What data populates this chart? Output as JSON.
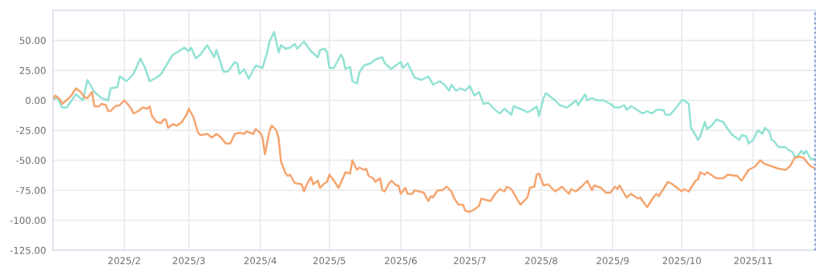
{
  "chart_data": {
    "type": "line",
    "xlim": [
      "2025-01-01",
      "2025-11-28"
    ],
    "xticks": [
      {
        "value": "2025-02-01",
        "label": "2025/2"
      },
      {
        "value": "2025-03-01",
        "label": "2025/3"
      },
      {
        "value": "2025-04-01",
        "label": "2025/4"
      },
      {
        "value": "2025-05-01",
        "label": "2025/5"
      },
      {
        "value": "2025-06-01",
        "label": "2025/6"
      },
      {
        "value": "2025-07-01",
        "label": "2025/7"
      },
      {
        "value": "2025-08-01",
        "label": "2025/8"
      },
      {
        "value": "2025-09-01",
        "label": "2025/9"
      },
      {
        "value": "2025-10-01",
        "label": "2025/10"
      },
      {
        "value": "2025-11-01",
        "label": "2025/11"
      }
    ],
    "ylim": [
      -125,
      75
    ],
    "yticks": [
      {
        "value": -125,
        "label": "-125.00"
      },
      {
        "value": -100,
        "label": "-100.00"
      },
      {
        "value": -75,
        "label": "-75.00"
      },
      {
        "value": -50,
        "label": "-50.00"
      },
      {
        "value": -25,
        "label": "-25.00"
      },
      {
        "value": 0,
        "label": "0.00"
      },
      {
        "value": 25,
        "label": "25.00"
      },
      {
        "value": 50,
        "label": "50.00"
      }
    ],
    "grid": true,
    "marker": "none",
    "line_style": "solid",
    "ref_lines": [
      {
        "axis": "x",
        "value": "2025-11-28",
        "color": "#2f55c8",
        "line_style": "dotted"
      }
    ],
    "series": [
      {
        "color": "#92e2d4",
        "x": [
          "2025-01-01",
          "2025-01-03",
          "2025-01-05",
          "2025-01-07",
          "2025-01-11",
          "2025-01-14",
          "2025-01-16",
          "2025-01-19",
          "2025-01-22",
          "2025-01-25",
          "2025-01-26",
          "2025-01-29",
          "2025-01-30",
          "2025-02-02",
          "2025-02-05",
          "2025-02-08",
          "2025-02-10",
          "2025-02-12",
          "2025-02-15",
          "2025-02-17",
          "2025-02-22",
          "2025-02-24",
          "2025-02-27",
          "2025-03-01",
          "2025-03-02",
          "2025-03-04",
          "2025-03-06",
          "2025-03-09",
          "2025-03-12",
          "2025-03-13",
          "2025-03-16",
          "2025-03-18",
          "2025-03-21",
          "2025-03-22",
          "2025-03-23",
          "2025-03-25",
          "2025-03-27",
          "2025-03-30",
          "2025-04-02",
          "2025-04-04",
          "2025-04-05",
          "2025-04-07",
          "2025-04-09",
          "2025-04-10",
          "2025-04-12",
          "2025-04-14",
          "2025-04-16",
          "2025-04-17",
          "2025-04-20",
          "2025-04-23",
          "2025-04-26",
          "2025-04-27",
          "2025-04-29",
          "2025-04-30",
          "2025-05-01",
          "2025-05-03",
          "2025-05-06",
          "2025-05-07",
          "2025-05-08",
          "2025-05-10",
          "2025-05-11",
          "2025-05-13",
          "2025-05-14",
          "2025-05-16",
          "2025-05-19",
          "2025-05-21",
          "2025-05-24",
          "2025-05-25",
          "2025-05-28",
          "2025-05-29",
          "2025-06-01",
          "2025-06-02",
          "2025-06-04",
          "2025-06-07",
          "2025-06-10",
          "2025-06-13",
          "2025-06-15",
          "2025-06-18",
          "2025-06-20",
          "2025-06-22",
          "2025-06-23",
          "2025-06-25",
          "2025-06-27",
          "2025-06-29",
          "2025-07-01",
          "2025-07-03",
          "2025-07-05",
          "2025-07-07",
          "2025-07-09",
          "2025-07-12",
          "2025-07-14",
          "2025-07-16",
          "2025-07-19",
          "2025-07-20",
          "2025-07-24",
          "2025-07-26",
          "2025-07-28",
          "2025-07-30",
          "2025-07-31",
          "2025-08-02",
          "2025-08-03",
          "2025-08-05",
          "2025-08-07",
          "2025-08-09",
          "2025-08-12",
          "2025-08-13",
          "2025-08-16",
          "2025-08-17",
          "2025-08-20",
          "2025-08-21",
          "2025-08-23",
          "2025-08-25",
          "2025-08-28",
          "2025-08-31",
          "2025-09-02",
          "2025-09-04",
          "2025-09-06",
          "2025-09-07",
          "2025-09-09",
          "2025-09-10",
          "2025-09-14",
          "2025-09-16",
          "2025-09-18",
          "2025-09-20",
          "2025-09-23",
          "2025-09-24",
          "2025-09-26",
          "2025-09-29",
          "2025-10-01",
          "2025-10-02",
          "2025-10-04",
          "2025-10-05",
          "2025-10-07",
          "2025-10-08",
          "2025-10-09",
          "2025-10-11",
          "2025-10-12",
          "2025-10-14",
          "2025-10-16",
          "2025-10-19",
          "2025-10-21",
          "2025-10-23",
          "2025-10-26",
          "2025-10-27",
          "2025-10-29",
          "2025-10-30",
          "2025-11-01",
          "2025-11-03",
          "2025-11-05",
          "2025-11-06",
          "2025-11-08",
          "2025-11-09",
          "2025-11-10",
          "2025-11-12",
          "2025-11-15",
          "2025-11-16",
          "2025-11-18",
          "2025-11-19",
          "2025-11-20",
          "2025-11-22",
          "2025-11-23",
          "2025-11-24",
          "2025-11-26",
          "2025-11-28"
        ],
        "values": [
          1,
          2,
          -6,
          -6,
          5,
          0,
          17,
          7,
          2,
          0,
          10,
          11,
          20,
          16,
          22,
          35,
          27,
          16,
          19,
          22,
          38,
          40,
          44,
          41,
          44,
          35,
          38,
          46,
          36,
          42,
          24,
          24,
          32,
          31,
          22,
          26,
          18,
          29,
          27,
          40,
          49,
          57,
          40,
          46,
          43,
          44,
          47,
          43,
          49,
          41,
          36,
          42,
          43,
          40,
          27,
          27,
          38,
          35,
          26,
          28,
          16,
          14,
          23,
          29,
          31,
          34,
          36,
          31,
          26,
          28,
          32,
          27,
          31,
          19,
          17,
          20,
          13,
          16,
          13,
          8,
          13,
          8,
          10,
          8,
          12,
          4,
          7,
          -3,
          -2,
          -8,
          -11,
          -7,
          -12,
          -5,
          -8,
          -10,
          -8,
          -5,
          -13,
          2,
          6,
          3,
          0,
          -4,
          -6,
          -5,
          0,
          -4,
          5,
          0,
          2,
          0,
          0,
          -3,
          -6,
          -6,
          -4,
          -8,
          -5,
          -6,
          -11,
          -9,
          -11,
          -8,
          -8,
          -12,
          -12,
          -5,
          0,
          0,
          -3,
          -23,
          -29,
          -33,
          -30,
          -18,
          -24,
          -21,
          -16,
          -18,
          -24,
          -29,
          -33,
          -29,
          -30,
          -36,
          -33,
          -25,
          -28,
          -23,
          -26,
          -33,
          -34,
          -39,
          -39,
          -41,
          -43,
          -47,
          -47,
          -42,
          -45,
          -42,
          -49,
          -49
        ]
      },
      {
        "color": "#f5a56f",
        "x": [
          "2025-01-01",
          "2025-01-02",
          "2025-01-04",
          "2025-01-05",
          "2025-01-08",
          "2025-01-09",
          "2025-01-11",
          "2025-01-13",
          "2025-01-15",
          "2025-01-16",
          "2025-01-18",
          "2025-01-19",
          "2025-01-21",
          "2025-01-22",
          "2025-01-24",
          "2025-01-25",
          "2025-01-26",
          "2025-01-28",
          "2025-01-30",
          "2025-02-01",
          "2025-02-02",
          "2025-02-04",
          "2025-02-05",
          "2025-02-07",
          "2025-02-09",
          "2025-02-11",
          "2025-02-12",
          "2025-02-13",
          "2025-02-15",
          "2025-02-17",
          "2025-02-18",
          "2025-02-19",
          "2025-02-20",
          "2025-02-22",
          "2025-02-24",
          "2025-02-26",
          "2025-02-28",
          "2025-03-01",
          "2025-03-03",
          "2025-03-05",
          "2025-03-06",
          "2025-03-09",
          "2025-03-11",
          "2025-03-13",
          "2025-03-15",
          "2025-03-17",
          "2025-03-19",
          "2025-03-21",
          "2025-03-23",
          "2025-03-25",
          "2025-03-26",
          "2025-03-29",
          "2025-03-30",
          "2025-04-01",
          "2025-04-02",
          "2025-04-03",
          "2025-04-05",
          "2025-04-06",
          "2025-04-08",
          "2025-04-09",
          "2025-04-10",
          "2025-04-12",
          "2025-04-13",
          "2025-04-14",
          "2025-04-16",
          "2025-04-19",
          "2025-04-20",
          "2025-04-21",
          "2025-04-23",
          "2025-04-24",
          "2025-04-26",
          "2025-04-27",
          "2025-04-29",
          "2025-04-30",
          "2025-05-01",
          "2025-05-03",
          "2025-05-05",
          "2025-05-08",
          "2025-05-10",
          "2025-05-11",
          "2025-05-13",
          "2025-05-14",
          "2025-05-16",
          "2025-05-17",
          "2025-05-18",
          "2025-05-20",
          "2025-05-21",
          "2025-05-23",
          "2025-05-24",
          "2025-05-25",
          "2025-05-27",
          "2025-05-28",
          "2025-05-30",
          "2025-05-31",
          "2025-06-01",
          "2025-06-03",
          "2025-06-04",
          "2025-06-06",
          "2025-06-07",
          "2025-06-09",
          "2025-06-11",
          "2025-06-13",
          "2025-06-14",
          "2025-06-15",
          "2025-06-17",
          "2025-06-19",
          "2025-06-21",
          "2025-06-23",
          "2025-06-24",
          "2025-06-26",
          "2025-06-28",
          "2025-06-29",
          "2025-07-01",
          "2025-07-03",
          "2025-07-05",
          "2025-07-06",
          "2025-07-08",
          "2025-07-10",
          "2025-07-12",
          "2025-07-14",
          "2025-07-16",
          "2025-07-17",
          "2025-07-19",
          "2025-07-22",
          "2025-07-23",
          "2025-07-26",
          "2025-07-27",
          "2025-07-29",
          "2025-07-30",
          "2025-07-31",
          "2025-08-02",
          "2025-08-04",
          "2025-08-07",
          "2025-08-10",
          "2025-08-13",
          "2025-08-14",
          "2025-08-16",
          "2025-08-19",
          "2025-08-21",
          "2025-08-23",
          "2025-08-24",
          "2025-08-27",
          "2025-08-29",
          "2025-08-31",
          "2025-09-02",
          "2025-09-03",
          "2025-09-04",
          "2025-09-07",
          "2025-09-09",
          "2025-09-12",
          "2025-09-13",
          "2025-09-14",
          "2025-09-16",
          "2025-09-17",
          "2025-09-19",
          "2025-09-20",
          "2025-09-21",
          "2025-09-25",
          "2025-09-27",
          "2025-10-01",
          "2025-10-02",
          "2025-10-04",
          "2025-10-05",
          "2025-10-07",
          "2025-10-08",
          "2025-10-09",
          "2025-10-11",
          "2025-10-12",
          "2025-10-16",
          "2025-10-17",
          "2025-10-19",
          "2025-10-21",
          "2025-10-25",
          "2025-10-27",
          "2025-10-30",
          "2025-11-02",
          "2025-11-04",
          "2025-11-06",
          "2025-11-09",
          "2025-11-12",
          "2025-11-15",
          "2025-11-17",
          "2025-11-19",
          "2025-11-21",
          "2025-11-23",
          "2025-11-24",
          "2025-11-26",
          "2025-11-28"
        ],
        "values": [
          1,
          4,
          1,
          -3,
          2,
          4,
          10,
          7,
          2,
          2,
          7,
          -5,
          -5,
          -3,
          -4,
          -9,
          -9,
          -5,
          -4,
          0,
          -2,
          -7,
          -11,
          -9,
          -6,
          -7,
          -5,
          -13,
          -18,
          -19,
          -16,
          -16,
          -23,
          -20,
          -21,
          -18,
          -12,
          -7,
          -14,
          -27,
          -29,
          -28,
          -31,
          -28,
          -31,
          -36,
          -36,
          -28,
          -27,
          -28,
          -26,
          -28,
          -24,
          -27,
          -31,
          -45,
          -26,
          -21,
          -25,
          -32,
          -51,
          -61,
          -63,
          -62,
          -69,
          -70,
          -76,
          -71,
          -64,
          -70,
          -67,
          -73,
          -69,
          -68,
          -62,
          -67,
          -73,
          -60,
          -61,
          -50,
          -58,
          -56,
          -58,
          -57,
          -63,
          -65,
          -68,
          -65,
          -75,
          -76,
          -69,
          -67,
          -71,
          -71,
          -78,
          -73,
          -78,
          -78,
          -75,
          -76,
          -77,
          -84,
          -80,
          -81,
          -75,
          -75,
          -72,
          -76,
          -81,
          -87,
          -87,
          -92,
          -93,
          -91,
          -88,
          -82,
          -83,
          -84,
          -78,
          -74,
          -76,
          -72,
          -74,
          -84,
          -87,
          -81,
          -73,
          -72,
          -62,
          -61,
          -71,
          -70,
          -76,
          -72,
          -78,
          -74,
          -76,
          -71,
          -67,
          -75,
          -71,
          -73,
          -77,
          -77,
          -72,
          -74,
          -71,
          -81,
          -78,
          -82,
          -81,
          -84,
          -89,
          -86,
          -80,
          -78,
          -80,
          -68,
          -70,
          -76,
          -74,
          -76,
          -73,
          -67,
          -66,
          -60,
          -62,
          -60,
          -65,
          -65,
          -65,
          -62,
          -63,
          -67,
          -58,
          -55,
          -50,
          -53,
          -55,
          -57,
          -58,
          -55,
          -48,
          -47,
          -48,
          -51,
          -55,
          -57
        ]
      }
    ]
  }
}
